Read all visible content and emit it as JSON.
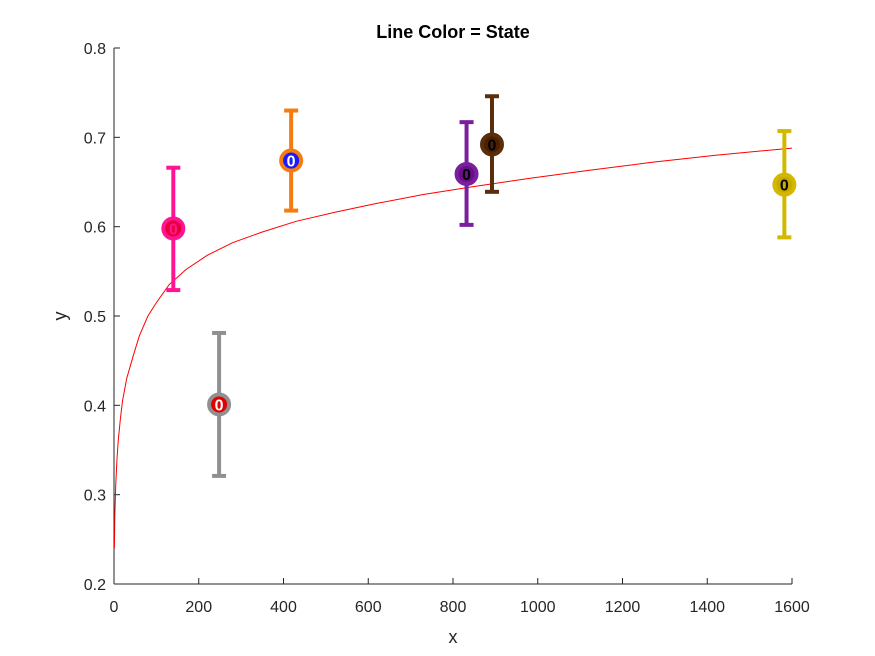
{
  "chart_data": {
    "type": "scatter",
    "title": "Line Color = State",
    "xlabel": "x",
    "ylabel": "y",
    "xlim": [
      0,
      1600
    ],
    "ylim": [
      0.2,
      0.8
    ],
    "x_ticks": [
      0,
      200,
      400,
      600,
      800,
      1000,
      1200,
      1400,
      1600
    ],
    "y_ticks": [
      0.2,
      0.3,
      0.4,
      0.5,
      0.6,
      0.7,
      0.8
    ],
    "x_tick_labels": [
      "0",
      "200",
      "400",
      "600",
      "800",
      "1000",
      "1200",
      "1400",
      "1600"
    ],
    "y_tick_labels": [
      "0.2",
      "0.3",
      "0.4",
      "0.5",
      "0.6",
      "0.7",
      "0.8"
    ],
    "grid": false,
    "points": [
      {
        "x": 140,
        "y": 0.598,
        "err_low": 0.529,
        "err_high": 0.666,
        "color": "#ff1493",
        "fill": "#e8003a",
        "label": "0",
        "label_color": "#ff1493"
      },
      {
        "x": 248,
        "y": 0.401,
        "err_low": 0.321,
        "err_high": 0.481,
        "color": "#909090",
        "fill": "#e00000",
        "label": "0",
        "label_color": "#ffffff"
      },
      {
        "x": 418,
        "y": 0.674,
        "err_low": 0.618,
        "err_high": 0.73,
        "color": "#f57c0f",
        "fill": "#1a1aff",
        "label": "0",
        "label_color": "#ffffff"
      },
      {
        "x": 832,
        "y": 0.659,
        "err_low": 0.602,
        "err_high": 0.717,
        "color": "#7a1f9e",
        "fill": "#6a0f8a",
        "label": "0",
        "label_color": "#000000"
      },
      {
        "x": 892,
        "y": 0.692,
        "err_low": 0.639,
        "err_high": 0.746,
        "color": "#5a2e0a",
        "fill": "#4a2000",
        "label": "0",
        "label_color": "#000000"
      },
      {
        "x": 1582,
        "y": 0.647,
        "err_low": 0.588,
        "err_high": 0.707,
        "color": "#d4b800",
        "fill": "#c8aa00",
        "label": "0",
        "label_color": "#000000"
      }
    ],
    "fit_curve": {
      "color": "#ff0000",
      "samples": [
        [
          1,
          0.24
        ],
        [
          2,
          0.275
        ],
        [
          4,
          0.31
        ],
        [
          7,
          0.34
        ],
        [
          10,
          0.36
        ],
        [
          15,
          0.385
        ],
        [
          20,
          0.405
        ],
        [
          30,
          0.43
        ],
        [
          45,
          0.455
        ],
        [
          60,
          0.478
        ],
        [
          80,
          0.5
        ],
        [
          100,
          0.515
        ],
        [
          130,
          0.535
        ],
        [
          170,
          0.552
        ],
        [
          220,
          0.568
        ],
        [
          280,
          0.582
        ],
        [
          350,
          0.594
        ],
        [
          430,
          0.606
        ],
        [
          520,
          0.616
        ],
        [
          620,
          0.626
        ],
        [
          730,
          0.636
        ],
        [
          850,
          0.645
        ],
        [
          980,
          0.654
        ],
        [
          1120,
          0.663
        ],
        [
          1270,
          0.672
        ],
        [
          1420,
          0.68
        ],
        [
          1600,
          0.688
        ]
      ]
    }
  }
}
